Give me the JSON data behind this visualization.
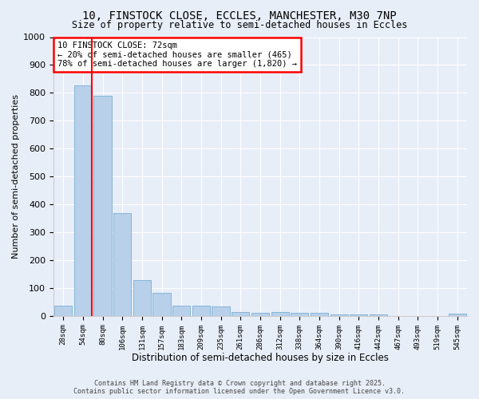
{
  "title_line1": "10, FINSTOCK CLOSE, ECCLES, MANCHESTER, M30 7NP",
  "title_line2": "Size of property relative to semi-detached houses in Eccles",
  "xlabel": "Distribution of semi-detached houses by size in Eccles",
  "ylabel": "Number of semi-detached properties",
  "categories": [
    "28sqm",
    "54sqm",
    "80sqm",
    "106sqm",
    "131sqm",
    "157sqm",
    "183sqm",
    "209sqm",
    "235sqm",
    "261sqm",
    "286sqm",
    "312sqm",
    "338sqm",
    "364sqm",
    "390sqm",
    "416sqm",
    "442sqm",
    "467sqm",
    "493sqm",
    "519sqm",
    "545sqm"
  ],
  "values": [
    37,
    828,
    790,
    370,
    128,
    82,
    37,
    37,
    33,
    15,
    10,
    13,
    12,
    10,
    5,
    4,
    4,
    0,
    0,
    0,
    8
  ],
  "bar_color": "#b8d0ea",
  "bar_edge_color": "#7aafd4",
  "vline_x_index": 1,
  "vline_color": "red",
  "annotation_text": "10 FINSTOCK CLOSE: 72sqm\n← 20% of semi-detached houses are smaller (465)\n78% of semi-detached houses are larger (1,820) →",
  "annotation_box_color": "white",
  "annotation_box_edge_color": "red",
  "ylim": [
    0,
    1000
  ],
  "yticks": [
    0,
    100,
    200,
    300,
    400,
    500,
    600,
    700,
    800,
    900,
    1000
  ],
  "bg_color": "#e8eef8",
  "footer_line1": "Contains HM Land Registry data © Crown copyright and database right 2025.",
  "footer_line2": "Contains public sector information licensed under the Open Government Licence v3.0."
}
